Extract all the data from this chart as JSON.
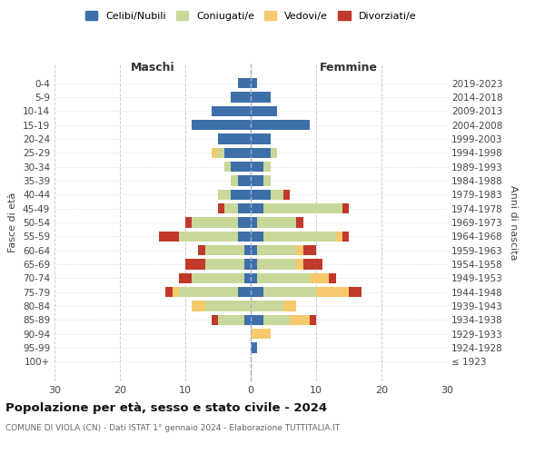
{
  "age_groups": [
    "100+",
    "95-99",
    "90-94",
    "85-89",
    "80-84",
    "75-79",
    "70-74",
    "65-69",
    "60-64",
    "55-59",
    "50-54",
    "45-49",
    "40-44",
    "35-39",
    "30-34",
    "25-29",
    "20-24",
    "15-19",
    "10-14",
    "5-9",
    "0-4"
  ],
  "birth_years": [
    "≤ 1923",
    "1924-1928",
    "1929-1933",
    "1934-1938",
    "1939-1943",
    "1944-1948",
    "1949-1953",
    "1954-1958",
    "1959-1963",
    "1964-1968",
    "1969-1973",
    "1974-1978",
    "1979-1983",
    "1984-1988",
    "1989-1993",
    "1994-1998",
    "1999-2003",
    "2004-2008",
    "2009-2013",
    "2014-2018",
    "2019-2023"
  ],
  "maschi": {
    "celibi": [
      0,
      0,
      0,
      1,
      0,
      2,
      1,
      1,
      1,
      2,
      2,
      2,
      3,
      2,
      3,
      4,
      5,
      9,
      6,
      3,
      2
    ],
    "coniugati": [
      0,
      0,
      0,
      4,
      7,
      9,
      8,
      6,
      6,
      9,
      7,
      2,
      2,
      1,
      1,
      1,
      0,
      0,
      0,
      0,
      0
    ],
    "vedovi": [
      0,
      0,
      0,
      0,
      2,
      1,
      0,
      0,
      0,
      0,
      0,
      0,
      0,
      0,
      0,
      1,
      0,
      0,
      0,
      0,
      0
    ],
    "divorziati": [
      0,
      0,
      0,
      1,
      0,
      1,
      2,
      3,
      1,
      3,
      1,
      1,
      0,
      0,
      0,
      0,
      0,
      0,
      0,
      0,
      0
    ]
  },
  "femmine": {
    "nubili": [
      0,
      1,
      0,
      2,
      0,
      2,
      1,
      1,
      1,
      2,
      1,
      2,
      3,
      2,
      2,
      3,
      3,
      9,
      4,
      3,
      1
    ],
    "coniugate": [
      0,
      0,
      0,
      4,
      5,
      8,
      8,
      6,
      6,
      11,
      6,
      12,
      2,
      1,
      1,
      1,
      0,
      0,
      0,
      0,
      0
    ],
    "vedove": [
      0,
      0,
      3,
      3,
      2,
      5,
      3,
      1,
      1,
      1,
      0,
      0,
      0,
      0,
      0,
      0,
      0,
      0,
      0,
      0,
      0
    ],
    "divorziate": [
      0,
      0,
      0,
      1,
      0,
      2,
      1,
      3,
      2,
      1,
      1,
      1,
      1,
      0,
      0,
      0,
      0,
      0,
      0,
      0,
      0
    ]
  },
  "color_celibi": "#3d6fa8",
  "color_coniugati": "#c8d89a",
  "color_vedovi": "#f5c96c",
  "color_divorziati": "#c0392b",
  "xlim": 30,
  "title": "Popolazione per età, sesso e stato civile - 2024",
  "subtitle": "COMUNE DI VIOLA (CN) - Dati ISTAT 1° gennaio 2024 - Elaborazione TUTTITALIA.IT",
  "ylabel_left": "Fasce di età",
  "ylabel_right": "Anni di nascita",
  "xlabel_left": "Maschi",
  "xlabel_right": "Femmine"
}
